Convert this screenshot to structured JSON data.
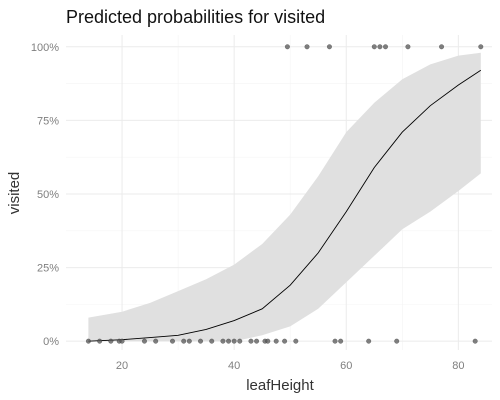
{
  "chart_data": {
    "type": "line",
    "title": "Predicted probabilities for visited",
    "xlabel": "leafHeight",
    "ylabel": "visited",
    "xlim": [
      10,
      86
    ],
    "ylim": [
      -0.03,
      1.04
    ],
    "x_ticks": [
      {
        "value": 20,
        "label": "20"
      },
      {
        "value": 40,
        "label": "40"
      },
      {
        "value": 60,
        "label": "60"
      },
      {
        "value": 80,
        "label": "80"
      }
    ],
    "y_ticks": [
      {
        "value": 0,
        "label": "0%"
      },
      {
        "value": 0.25,
        "label": "25%"
      },
      {
        "value": 0.5,
        "label": "50%"
      },
      {
        "value": 0.75,
        "label": "75%"
      },
      {
        "value": 1,
        "label": "100%"
      }
    ],
    "grid": true,
    "colors": {
      "line": "#000000",
      "ribbon": "#e0e0e0",
      "points": "#555555"
    },
    "fit": {
      "x": [
        14,
        20,
        25,
        30,
        35,
        40,
        45,
        50,
        55,
        60,
        65,
        70,
        75,
        80,
        84
      ],
      "y": [
        0.0,
        0.005,
        0.012,
        0.02,
        0.04,
        0.07,
        0.11,
        0.19,
        0.3,
        0.44,
        0.59,
        0.71,
        0.8,
        0.87,
        0.92
      ],
      "lower": [
        0.0,
        0.0,
        0.0,
        0.0,
        0.0,
        0.0,
        0.02,
        0.05,
        0.11,
        0.2,
        0.29,
        0.38,
        0.44,
        0.51,
        0.57
      ],
      "upper": [
        0.08,
        0.1,
        0.13,
        0.17,
        0.21,
        0.26,
        0.33,
        0.43,
        0.56,
        0.71,
        0.81,
        0.89,
        0.94,
        0.97,
        0.98
      ]
    },
    "points": {
      "visited_1": [
        49.5,
        53,
        57,
        65,
        66,
        67,
        71,
        77,
        84
      ],
      "visited_0": [
        14,
        16,
        18,
        19.5,
        20,
        24,
        26,
        29,
        31,
        32,
        34,
        36,
        38,
        39,
        40,
        41,
        43,
        44,
        45.5,
        46,
        47.5,
        49,
        51,
        58,
        59,
        64,
        69,
        83
      ]
    }
  }
}
